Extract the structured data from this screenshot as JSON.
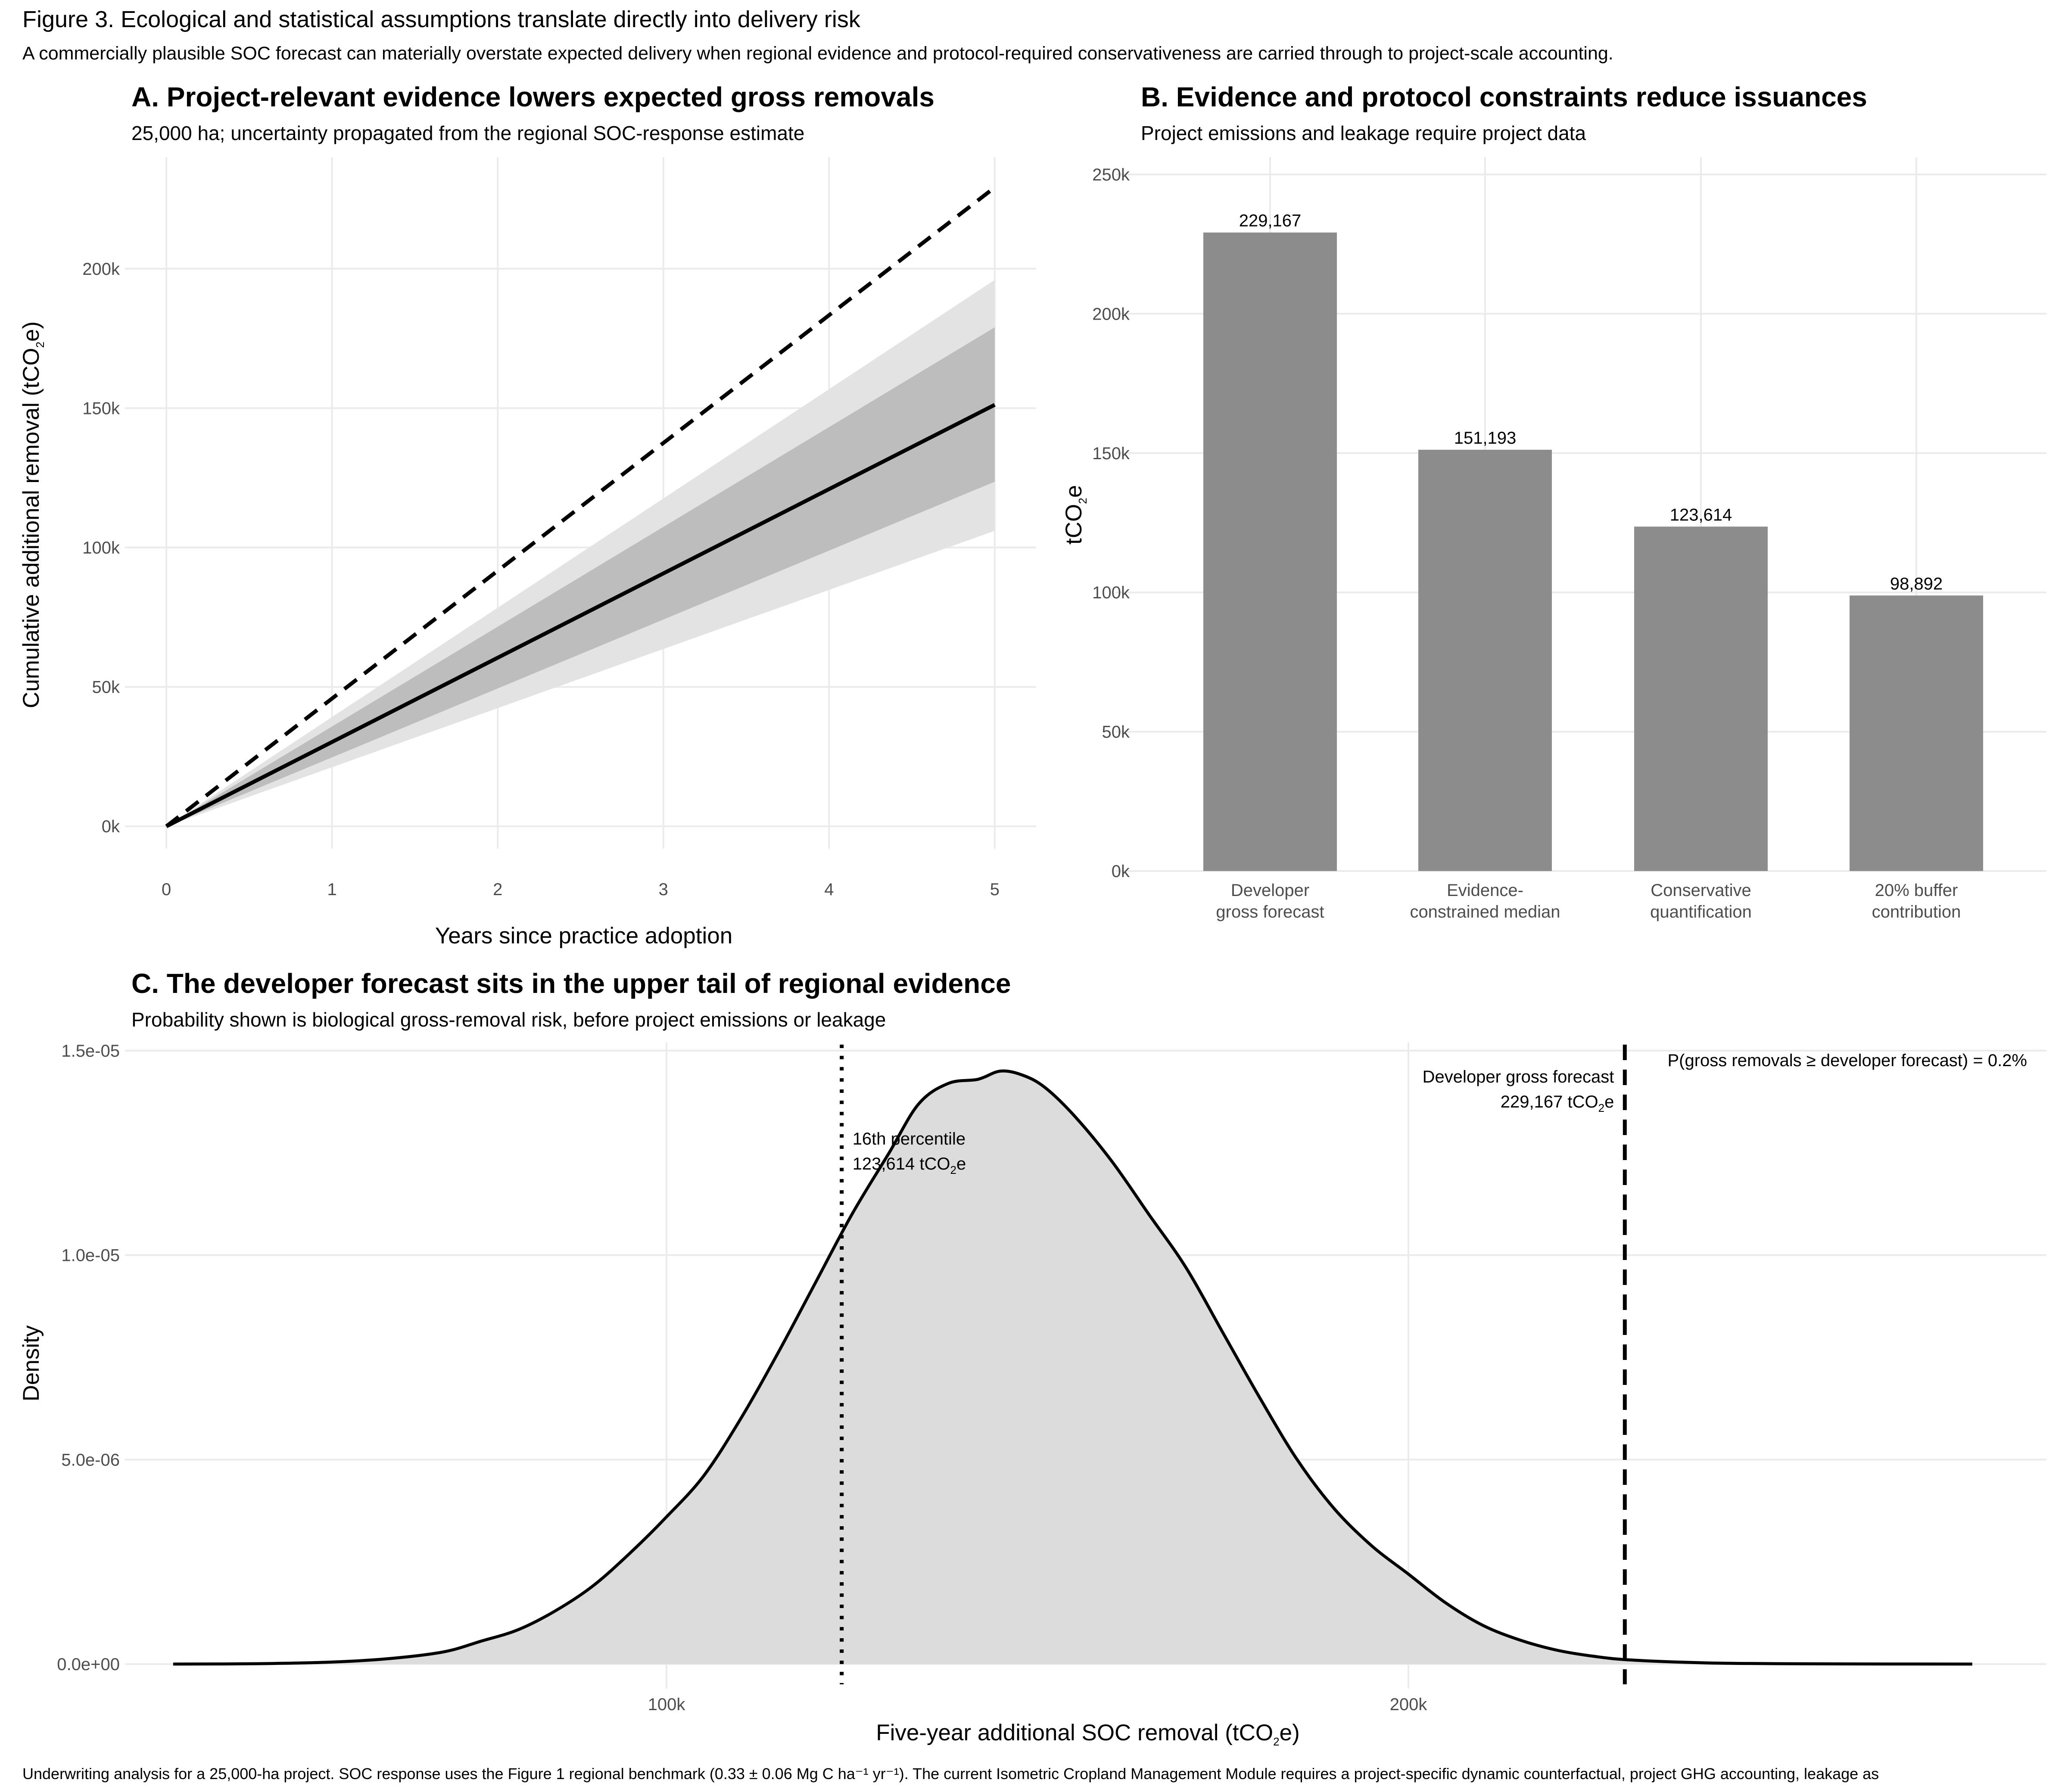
{
  "figure": {
    "title": "Figure 3. Ecological and statistical assumptions translate directly into delivery risk",
    "subtitle": "A commercially plausible SOC forecast can materially overstate expected delivery when regional evidence and protocol-required conservativeness are carried through to project-scale accounting.",
    "caption": "Underwriting analysis for a 25,000-ha project. SOC response uses the Figure 1 regional benchmark (0.33 ± 0.06 Mg C ha⁻¹ yr⁻¹). The current Isometric Cropland Management Module requires a project-specific dynamic counterfactual, project GHG accounting, leakage as"
  },
  "colors": {
    "band_outer": "#e3e3e3",
    "band_inner": "#bdbdbd",
    "bar": "#8c8c8c",
    "density_fill": "#dcdcdc",
    "grid": "#ebebeb",
    "line": "#000000"
  },
  "chart_data": [
    {
      "panel": "A",
      "type": "line",
      "title": "A. Project-relevant evidence lowers expected gross removals",
      "subtitle": "25,000 ha; uncertainty propagated from the regional SOC-response estimate",
      "xlabel": "Years since practice adoption",
      "ylabel_pre": "Cumulative additional removal (tCO",
      "ylabel_sub": "2",
      "ylabel_post": "e)",
      "x": [
        0,
        1,
        2,
        3,
        4,
        5
      ],
      "xlim": [
        -0.25,
        5.25
      ],
      "ylim": [
        -8000,
        240000
      ],
      "xticks": [
        "0",
        "1",
        "2",
        "3",
        "4",
        "5"
      ],
      "yticks": [
        {
          "v": 0,
          "l": "0k"
        },
        {
          "v": 50000,
          "l": "50k"
        },
        {
          "v": 100000,
          "l": "100k"
        },
        {
          "v": 150000,
          "l": "150k"
        },
        {
          "v": 200000,
          "l": "200k"
        }
      ],
      "series": [
        {
          "role": "developer",
          "style": "dashed",
          "values": [
            0,
            45833,
            91667,
            137500,
            183333,
            229167
          ]
        },
        {
          "role": "median",
          "style": "solid",
          "values": [
            0,
            30239,
            60477,
            90716,
            120954,
            151193
          ]
        }
      ],
      "bands": [
        {
          "role": "outer",
          "lower": [
            0,
            21200,
            42400,
            63600,
            84800,
            106000
          ],
          "upper": [
            0,
            39200,
            78400,
            117600,
            156800,
            196000
          ]
        },
        {
          "role": "inner",
          "lower": [
            0,
            24723,
            49446,
            74168,
            98891,
            123614
          ],
          "upper": [
            0,
            35800,
            71600,
            107400,
            143200,
            179000
          ]
        }
      ],
      "grid": true
    },
    {
      "panel": "B",
      "type": "bar",
      "title": "B. Evidence and protocol constraints reduce issuances",
      "subtitle": "Project emissions and leakage require project data",
      "ylabel_pre": "tCO",
      "ylabel_sub": "2",
      "ylabel_post": "e",
      "categories": [
        [
          "Developer",
          "gross forecast"
        ],
        [
          "Evidence-",
          "constrained median"
        ],
        [
          "Conservative",
          "quantification"
        ],
        [
          "20% buffer",
          "contribution"
        ]
      ],
      "values": [
        229167,
        151193,
        123614,
        98892
      ],
      "value_labels": [
        "229,167",
        "151,193",
        "123,614",
        "98,892"
      ],
      "ylim": [
        0,
        250000
      ],
      "yticks": [
        {
          "v": 0,
          "l": "0k"
        },
        {
          "v": 50000,
          "l": "50k"
        },
        {
          "v": 100000,
          "l": "100k"
        },
        {
          "v": 150000,
          "l": "150k"
        },
        {
          "v": 200000,
          "l": "200k"
        },
        {
          "v": 250000,
          "l": "250k"
        }
      ],
      "grid": true
    },
    {
      "panel": "C",
      "type": "area",
      "title": "C. The developer forecast sits in the upper tail of regional evidence",
      "subtitle": "Probability shown is biological gross-removal risk, before project emissions or leakage",
      "xlabel_pre": "Five-year additional SOC removal (tCO",
      "xlabel_sub": "2",
      "xlabel_post": "e)",
      "ylabel": "Density",
      "xlim": [
        27000,
        286000
      ],
      "ylim": [
        -6e-07,
        1.52e-05
      ],
      "xticks": [
        {
          "v": 100000,
          "l": "100k"
        },
        {
          "v": 200000,
          "l": "200k"
        }
      ],
      "yticks": [
        {
          "v": 0,
          "l": "0.0e+00"
        },
        {
          "v": 5e-06,
          "l": "5.0e-06"
        },
        {
          "v": 1e-05,
          "l": "1.0e-05"
        },
        {
          "v": 1.5e-05,
          "l": "1.5e-05"
        }
      ],
      "x": [
        33500,
        45000,
        55000,
        63000,
        70000,
        75000,
        80000,
        85000,
        90000,
        95000,
        100000,
        105000,
        110000,
        115000,
        120000,
        125000,
        130000,
        134000,
        138000,
        142000,
        145000,
        148000,
        151000,
        155000,
        160000,
        165000,
        170000,
        175000,
        180000,
        185000,
        190000,
        195000,
        200000,
        205000,
        210000,
        215000,
        220000,
        225000,
        230000,
        240000,
        250000,
        265000,
        276000
      ],
      "y": [
        0,
        1e-08,
        5e-08,
        1.4e-07,
        3e-07,
        5.6e-07,
        8.4e-07,
        1.3e-06,
        1.9e-06,
        2.7e-06,
        3.6e-06,
        4.6e-06,
        6e-06,
        7.6e-06,
        9.3e-06,
        1.1e-05,
        1.25e-05,
        1.37e-05,
        1.42e-05,
        1.43e-05,
        1.45e-05,
        1.44e-05,
        1.41e-05,
        1.34e-05,
        1.23e-05,
        1.1e-05,
        9.7e-06,
        8.1e-06,
        6.5e-06,
        5e-06,
        3.8e-06,
        2.9e-06,
        2.2e-06,
        1.5e-06,
        9.5e-07,
        5.9e-07,
        3.4e-07,
        1.9e-07,
        1e-07,
        3e-08,
        1e-08,
        2e-09,
        0
      ],
      "vlines": [
        {
          "x": 123614,
          "style": "dotted",
          "label1": "16th percentile",
          "label2_pre": "123,614 tCO",
          "label2_sub": "2",
          "label2_post": "e"
        },
        {
          "x": 229167,
          "style": "dashed",
          "label1": "Developer gross forecast",
          "label2_pre": "229,167 tCO",
          "label2_sub": "2",
          "label2_post": "e"
        }
      ],
      "probability_note": "P(gross removals ≥ developer forecast) = 0.2%",
      "grid": true
    }
  ]
}
